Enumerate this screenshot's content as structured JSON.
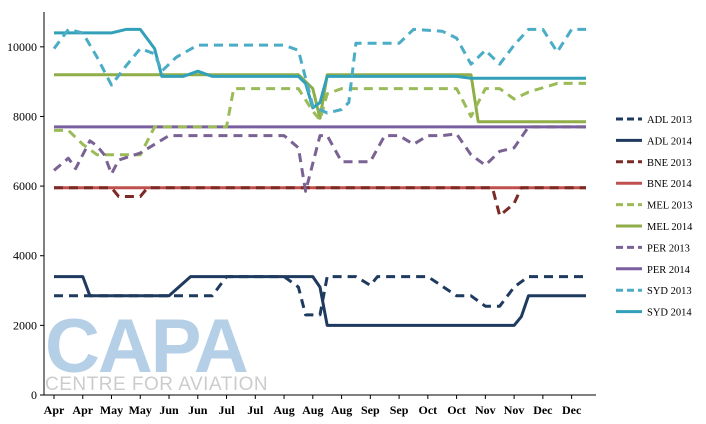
{
  "chart_data": {
    "type": "line",
    "title": "",
    "xlabel": "",
    "ylabel": "",
    "ylim": [
      0,
      11000
    ],
    "yticks": [
      0,
      2000,
      4000,
      6000,
      8000,
      10000
    ],
    "ytick_labels": [
      "0",
      "2000",
      "4000",
      "6000",
      "8000",
      "10000"
    ],
    "grid": false,
    "legend_position": "right",
    "x_tick_labels": [
      "Apr",
      "Apr",
      "May",
      "May",
      "Jun",
      "Jun",
      "Jul",
      "Jul",
      "Aug",
      "Aug",
      "Aug",
      "Sep",
      "Sep",
      "Oct",
      "Oct",
      "Nov",
      "Nov",
      "Dec",
      "Dec"
    ],
    "x_tick_positions": [
      0,
      4,
      8,
      12,
      16,
      20,
      24,
      28,
      32,
      36,
      40,
      44,
      48,
      52,
      56,
      60,
      64,
      68,
      72
    ],
    "x_range": [
      0,
      74
    ],
    "series": [
      {
        "name": "ADL 2013",
        "color": "#1f3a5f",
        "dash": true,
        "points": [
          [
            0,
            2850
          ],
          [
            4,
            2850
          ],
          [
            8,
            2850
          ],
          [
            12,
            2850
          ],
          [
            16,
            2850
          ],
          [
            20,
            2850
          ],
          [
            22,
            2850
          ],
          [
            24,
            3400
          ],
          [
            28,
            3400
          ],
          [
            32,
            3400
          ],
          [
            34,
            3100
          ],
          [
            35,
            2300
          ],
          [
            37,
            2300
          ],
          [
            38,
            3400
          ],
          [
            42,
            3400
          ],
          [
            44,
            3150
          ],
          [
            45,
            3400
          ],
          [
            52,
            3400
          ],
          [
            56,
            2850
          ],
          [
            58,
            2850
          ],
          [
            60,
            2550
          ],
          [
            62,
            2550
          ],
          [
            64,
            3100
          ],
          [
            66,
            3400
          ],
          [
            72,
            3400
          ],
          [
            74,
            3400
          ]
        ]
      },
      {
        "name": "ADL 2014",
        "color": "#1f3a5f",
        "dash": false,
        "points": [
          [
            0,
            3400
          ],
          [
            4,
            3400
          ],
          [
            5,
            2850
          ],
          [
            12,
            2850
          ],
          [
            16,
            2850
          ],
          [
            19,
            3400
          ],
          [
            32,
            3400
          ],
          [
            36,
            3400
          ],
          [
            37,
            3100
          ],
          [
            38,
            2000
          ],
          [
            62,
            2000
          ],
          [
            64,
            2000
          ],
          [
            65,
            2250
          ],
          [
            66,
            2850
          ],
          [
            74,
            2850
          ]
        ]
      },
      {
        "name": "BNE 2013",
        "color": "#7b2a25",
        "dash": true,
        "points": [
          [
            0,
            5950
          ],
          [
            8,
            5950
          ],
          [
            9,
            5700
          ],
          [
            12,
            5700
          ],
          [
            13,
            5950
          ],
          [
            58,
            5950
          ],
          [
            61,
            5950
          ],
          [
            62,
            5150
          ],
          [
            64,
            5500
          ],
          [
            65,
            5950
          ],
          [
            74,
            5950
          ]
        ]
      },
      {
        "name": "BNE 2014",
        "color": "#c0504d",
        "dash": false,
        "points": [
          [
            0,
            5950
          ],
          [
            74,
            5950
          ]
        ]
      },
      {
        "name": "MEL 2013",
        "color": "#9bbb59",
        "dash": true,
        "points": [
          [
            0,
            7600
          ],
          [
            2,
            7600
          ],
          [
            4,
            7200
          ],
          [
            6,
            6900
          ],
          [
            12,
            6900
          ],
          [
            14,
            7700
          ],
          [
            24,
            7700
          ],
          [
            25,
            8800
          ],
          [
            32,
            8800
          ],
          [
            34,
            8800
          ],
          [
            36,
            8150
          ],
          [
            37,
            7900
          ],
          [
            38,
            8650
          ],
          [
            40,
            8800
          ],
          [
            56,
            8800
          ],
          [
            58,
            8000
          ],
          [
            60,
            8800
          ],
          [
            62,
            8800
          ],
          [
            64,
            8500
          ],
          [
            66,
            8700
          ],
          [
            70,
            8950
          ],
          [
            74,
            8950
          ]
        ]
      },
      {
        "name": "MEL 2014",
        "color": "#8fae48",
        "dash": false,
        "points": [
          [
            0,
            9200
          ],
          [
            32,
            9200
          ],
          [
            34,
            9200
          ],
          [
            36,
            8800
          ],
          [
            37,
            7950
          ],
          [
            38,
            9200
          ],
          [
            58,
            9200
          ],
          [
            59,
            7850
          ],
          [
            74,
            7850
          ]
        ]
      },
      {
        "name": "PER 2013",
        "color": "#7a6394",
        "dash": true,
        "points": [
          [
            0,
            6450
          ],
          [
            2,
            6800
          ],
          [
            3,
            6500
          ],
          [
            5,
            7300
          ],
          [
            6,
            7150
          ],
          [
            7,
            6900
          ],
          [
            8,
            6350
          ],
          [
            9,
            6750
          ],
          [
            12,
            6950
          ],
          [
            16,
            7450
          ],
          [
            30,
            7450
          ],
          [
            32,
            7450
          ],
          [
            34,
            7100
          ],
          [
            35,
            5850
          ],
          [
            37,
            7450
          ],
          [
            38,
            7450
          ],
          [
            40,
            6700
          ],
          [
            44,
            6700
          ],
          [
            46,
            7450
          ],
          [
            48,
            7450
          ],
          [
            50,
            7200
          ],
          [
            52,
            7450
          ],
          [
            54,
            7450
          ],
          [
            56,
            7500
          ],
          [
            58,
            6900
          ],
          [
            60,
            6600
          ],
          [
            62,
            7000
          ],
          [
            64,
            7100
          ],
          [
            66,
            7700
          ],
          [
            74,
            7700
          ]
        ]
      },
      {
        "name": "PER 2014",
        "color": "#7a5fa0",
        "dash": false,
        "points": [
          [
            0,
            7700
          ],
          [
            74,
            7700
          ]
        ]
      },
      {
        "name": "SYD 2013",
        "color": "#4bacc6",
        "dash": true,
        "points": [
          [
            0,
            9950
          ],
          [
            2,
            10500
          ],
          [
            4,
            10400
          ],
          [
            6,
            9700
          ],
          [
            8,
            8900
          ],
          [
            10,
            9450
          ],
          [
            12,
            9950
          ],
          [
            14,
            9800
          ],
          [
            15,
            9300
          ],
          [
            17,
            9700
          ],
          [
            20,
            10050
          ],
          [
            32,
            10050
          ],
          [
            34,
            9900
          ],
          [
            36,
            8300
          ],
          [
            38,
            8100
          ],
          [
            40,
            8200
          ],
          [
            41,
            8400
          ],
          [
            42,
            10100
          ],
          [
            48,
            10100
          ],
          [
            50,
            10500
          ],
          [
            54,
            10450
          ],
          [
            56,
            10250
          ],
          [
            58,
            9500
          ],
          [
            60,
            9900
          ],
          [
            62,
            9500
          ],
          [
            64,
            10050
          ],
          [
            66,
            10500
          ],
          [
            68,
            10500
          ],
          [
            70,
            9850
          ],
          [
            72,
            10500
          ],
          [
            74,
            10500
          ]
        ]
      },
      {
        "name": "SYD 2014",
        "color": "#31a0b8",
        "dash": false,
        "points": [
          [
            0,
            10400
          ],
          [
            4,
            10400
          ],
          [
            8,
            10400
          ],
          [
            10,
            10500
          ],
          [
            12,
            10500
          ],
          [
            14,
            9950
          ],
          [
            15,
            9150
          ],
          [
            18,
            9150
          ],
          [
            20,
            9300
          ],
          [
            22,
            9150
          ],
          [
            32,
            9150
          ],
          [
            34,
            9150
          ],
          [
            35,
            8950
          ],
          [
            36,
            8250
          ],
          [
            37,
            8400
          ],
          [
            38,
            9150
          ],
          [
            48,
            9150
          ],
          [
            56,
            9150
          ],
          [
            58,
            9100
          ],
          [
            74,
            9100
          ]
        ]
      }
    ]
  },
  "watermark": {
    "brand": "CAPA",
    "tagline": "CENTRE FOR AVIATION"
  }
}
